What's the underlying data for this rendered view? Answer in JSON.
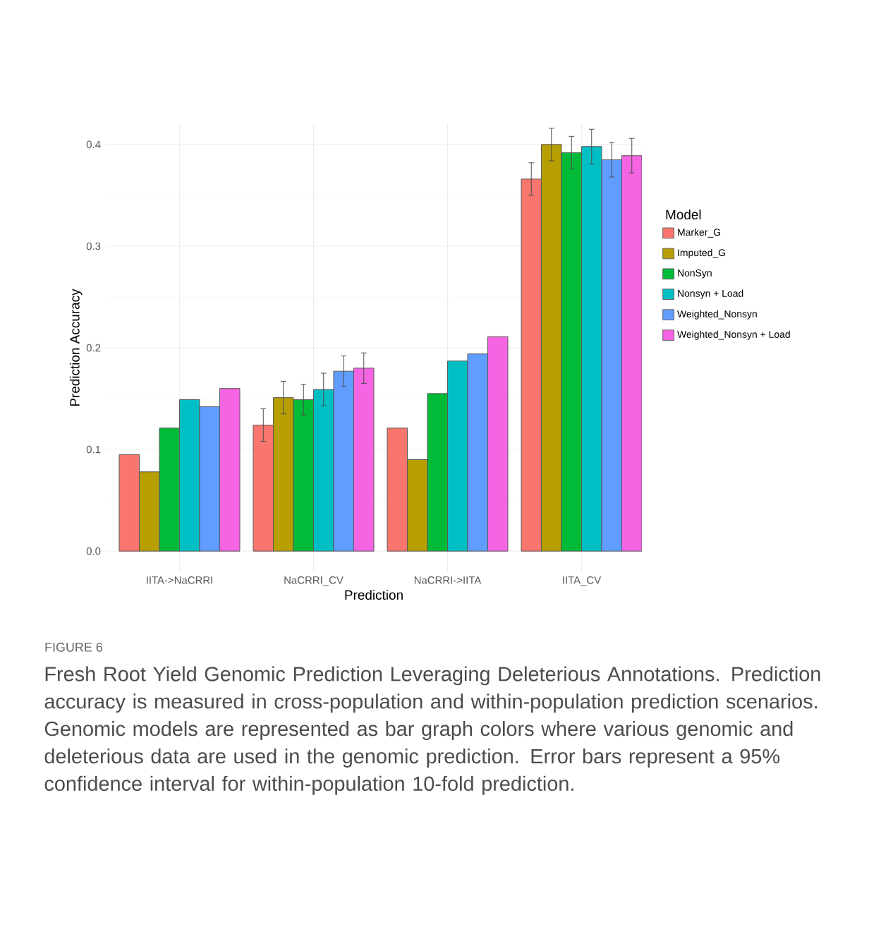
{
  "chart_data": {
    "type": "bar",
    "xlabel": "Prediction",
    "ylabel": "Prediction Accuracy",
    "legend_title": "Model",
    "categories": [
      "IITA->NaCRRI",
      "NaCRRI_CV",
      "NaCRRI->IITA",
      "IITA_CV"
    ],
    "series": [
      {
        "name": "Marker_G",
        "color": "#f8766d",
        "values": [
          0.095,
          0.124,
          0.121,
          0.366
        ],
        "errors": [
          null,
          0.016,
          null,
          0.016
        ]
      },
      {
        "name": "Imputed_G",
        "color": "#b79f00",
        "values": [
          0.078,
          0.151,
          0.09,
          0.4
        ],
        "errors": [
          null,
          0.016,
          null,
          0.016
        ]
      },
      {
        "name": "NonSyn",
        "color": "#00ba38",
        "values": [
          0.121,
          0.149,
          0.155,
          0.392
        ],
        "errors": [
          null,
          0.015,
          null,
          0.016
        ]
      },
      {
        "name": "Nonsyn + Load",
        "color": "#00bfc4",
        "values": [
          0.149,
          0.159,
          0.187,
          0.398
        ],
        "errors": [
          null,
          0.016,
          null,
          0.017
        ]
      },
      {
        "name": "Weighted_Nonsyn",
        "color": "#619cff",
        "values": [
          0.142,
          0.177,
          0.194,
          0.385
        ],
        "errors": [
          null,
          0.015,
          null,
          0.017
        ]
      },
      {
        "name": "Weighted_Nonsyn + Load",
        "color": "#f564e3",
        "values": [
          0.16,
          0.18,
          0.211,
          0.389
        ],
        "errors": [
          null,
          0.015,
          null,
          0.017
        ]
      }
    ],
    "ylim": [
      -0.02,
      0.42
    ],
    "yticks": [
      {
        "value": 0,
        "label": "0.0"
      },
      {
        "value": 0.1,
        "label": "0.1"
      },
      {
        "value": 0.2,
        "label": "0.2"
      },
      {
        "value": 0.3,
        "label": "0.3"
      },
      {
        "value": 0.4,
        "label": "0.4"
      }
    ],
    "grid": true,
    "legend": "right",
    "annotations": [
      "FIGURE 6",
      "Fresh Root Yield Genomic Prediction Leveraging Deleterious Annotations. Prediction accuracy is measured in cross-population and within-population prediction scenarios. Genomic models are represented as bar graph colors where various genomic and deleterious data are used in the genomic prediction. Error bars represent a 95% confidence interval for within-population 10-fold prediction."
    ]
  }
}
